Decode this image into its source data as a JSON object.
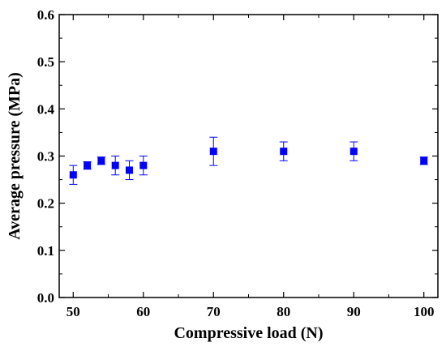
{
  "chart_data": {
    "type": "scatter",
    "title": "",
    "xlabel": "Compressive load (N)",
    "ylabel": "Average pressure (MPa)",
    "xlim": [
      48,
      102
    ],
    "ylim": [
      0.0,
      0.6
    ],
    "xticks": [
      50,
      60,
      70,
      80,
      90,
      100
    ],
    "yticks": [
      "0.0",
      "0.1",
      "0.2",
      "0.3",
      "0.4",
      "0.5",
      "0.6"
    ],
    "grid": false,
    "marker": "square",
    "color": "#0000ff",
    "series": [
      {
        "x": [
          50,
          52,
          54,
          56,
          58,
          60,
          70,
          80,
          90,
          100
        ],
        "y": [
          0.26,
          0.28,
          0.29,
          0.28,
          0.27,
          0.28,
          0.31,
          0.31,
          0.31,
          0.29
        ],
        "y_error": [
          0.02,
          0.008,
          0.008,
          0.02,
          0.02,
          0.02,
          0.03,
          0.02,
          0.02,
          0.008
        ]
      }
    ]
  }
}
